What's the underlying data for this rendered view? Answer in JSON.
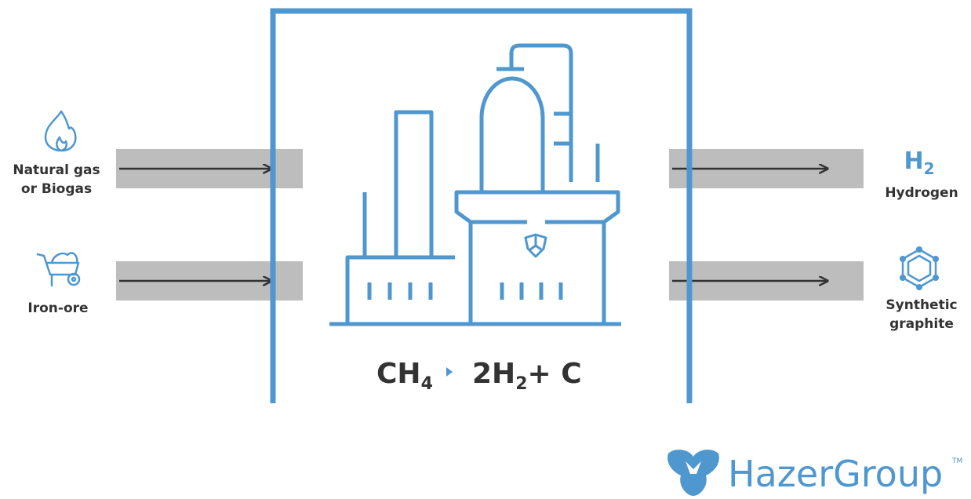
{
  "inputs": [
    {
      "label": [
        "Natural gas",
        "or Biogas"
      ]
    },
    {
      "label": [
        "Iron-ore"
      ]
    }
  ],
  "outputs": [
    {
      "symbol": [
        "H",
        "2"
      ],
      "label": [
        "Hydrogen"
      ]
    },
    {
      "label": [
        "Synthetic",
        "graphite"
      ]
    }
  ],
  "equation": {
    "reactant": [
      "CH",
      "4"
    ],
    "product": [
      "2H",
      "2"
    ],
    "rest": "+ C"
  },
  "logo": {
    "name": "HazerGroup",
    "mark": "TM"
  }
}
